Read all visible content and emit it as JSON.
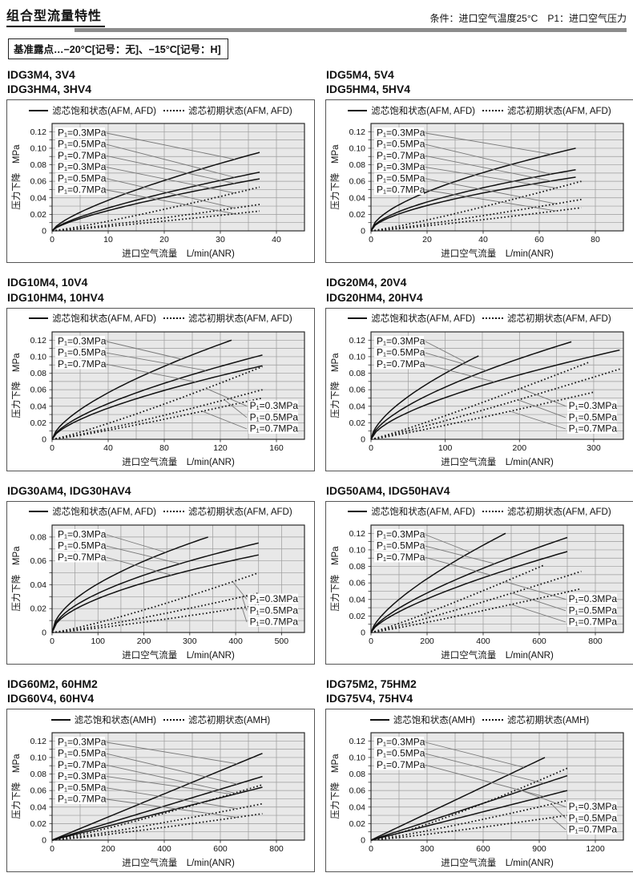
{
  "page": {
    "title": "组合型流量特性",
    "condition": "条件：进口空气温度25°C　P1：进口空气压力",
    "dew_point_note": "基准露点…−20°C[记号：无]、−15°C[记号：H]"
  },
  "colors": {
    "plot_bg": "#e8e8e8",
    "grid": "#9b9b9b",
    "curve": "#111111",
    "leader": "#777777",
    "divider": "#8c8c8c"
  },
  "chart_data": [
    {
      "type": "line",
      "title_lines": [
        "IDG3M4, 3V4",
        "IDG3HM4, 3HV4"
      ],
      "legend": {
        "solid": "滤芯饱和状态(AFM, AFD)",
        "dotted": "滤芯初期状态(AFM, AFD)"
      },
      "xlabel": "进口空气流量　L/min(ANR)",
      "ylabel": "压力下降　MPa",
      "xlim": [
        0,
        45
      ],
      "xticks": [
        [
          0,
          "0"
        ],
        [
          10,
          "10"
        ],
        [
          20,
          "20"
        ],
        [
          30,
          "30"
        ],
        [
          40,
          "40"
        ]
      ],
      "x_minor": 5,
      "ylim": [
        0,
        0.13
      ],
      "yticks": [
        [
          0,
          "0"
        ],
        [
          0.02,
          "0.02"
        ],
        [
          0.04,
          "0.04"
        ],
        [
          0.06,
          "0.06"
        ],
        [
          0.08,
          "0.08"
        ],
        [
          0.1,
          "0.10"
        ],
        [
          0.12,
          "0.12"
        ]
      ],
      "y_minor": 0.01,
      "series": [
        {
          "p1": "0.3MPa",
          "state": "saturated",
          "style": "solid",
          "p": 0.72,
          "end": [
            37,
            0.095
          ]
        },
        {
          "p1": "0.5MPa",
          "state": "saturated",
          "style": "solid",
          "p": 0.72,
          "end": [
            37,
            0.071
          ]
        },
        {
          "p1": "0.7MPa",
          "state": "saturated",
          "style": "solid",
          "p": 0.72,
          "end": [
            37,
            0.063
          ]
        },
        {
          "p1": "0.3MPa",
          "state": "initial",
          "style": "dotted",
          "p": 1.15,
          "end": [
            37,
            0.053
          ]
        },
        {
          "p1": "0.5MPa",
          "state": "initial",
          "style": "dotted",
          "p": 1.15,
          "end": [
            37,
            0.032
          ]
        },
        {
          "p1": "0.7MPa",
          "state": "initial",
          "style": "dotted",
          "p": 1.15,
          "end": [
            37,
            0.024
          ]
        }
      ],
      "labels_left": [
        "P₁=0.3MPa",
        "P₁=0.5MPa",
        "P₁=0.7MPa",
        "P₁=0.3MPa",
        "P₁=0.5MPa",
        "P₁=0.7MPa"
      ],
      "labels_right": []
    },
    {
      "type": "line",
      "title_lines": [
        "IDG5M4, 5V4",
        "IDG5HM4, 5HV4"
      ],
      "legend": {
        "solid": "滤芯饱和状态(AFM, AFD)",
        "dotted": "滤芯初期状态(AFM, AFD)"
      },
      "xlabel": "进口空气流量　L/min(ANR)",
      "ylabel": "压力下降　MPa",
      "xlim": [
        0,
        90
      ],
      "xticks": [
        [
          0,
          "0"
        ],
        [
          20,
          "20"
        ],
        [
          40,
          "40"
        ],
        [
          60,
          "60"
        ],
        [
          80,
          "80"
        ]
      ],
      "x_minor": 10,
      "ylim": [
        0,
        0.13
      ],
      "yticks": [
        [
          0,
          "0"
        ],
        [
          0.02,
          "0.02"
        ],
        [
          0.04,
          "0.04"
        ],
        [
          0.06,
          "0.06"
        ],
        [
          0.08,
          "0.08"
        ],
        [
          0.1,
          "0.10"
        ],
        [
          0.12,
          "0.12"
        ]
      ],
      "y_minor": 0.01,
      "series": [
        {
          "p1": "0.3MPa",
          "state": "saturated",
          "style": "solid",
          "p": 0.58,
          "end": [
            73,
            0.1
          ]
        },
        {
          "p1": "0.5MPa",
          "state": "saturated",
          "style": "solid",
          "p": 0.58,
          "end": [
            73,
            0.074
          ]
        },
        {
          "p1": "0.7MPa",
          "state": "saturated",
          "style": "solid",
          "p": 0.58,
          "end": [
            73,
            0.065
          ]
        },
        {
          "p1": "0.3MPa",
          "state": "initial",
          "style": "dotted",
          "p": 1.15,
          "end": [
            75,
            0.06
          ]
        },
        {
          "p1": "0.5MPa",
          "state": "initial",
          "style": "dotted",
          "p": 1.15,
          "end": [
            75,
            0.038
          ]
        },
        {
          "p1": "0.7MPa",
          "state": "initial",
          "style": "dotted",
          "p": 1.15,
          "end": [
            75,
            0.028
          ]
        }
      ],
      "labels_left": [
        "P₁=0.3MPa",
        "P₁=0.5MPa",
        "P₁=0.7MPa",
        "P₁=0.3MPa",
        "P₁=0.5MPa",
        "P₁=0.7MPa"
      ],
      "labels_right": []
    },
    {
      "type": "line",
      "title_lines": [
        "IDG10M4, 10V4",
        "IDG10HM4, 10HV4"
      ],
      "legend": {
        "solid": "滤芯饱和状态(AFM, AFD)",
        "dotted": "滤芯初期状态(AFM, AFD)"
      },
      "xlabel": "进口空气流量　L/min(ANR)",
      "ylabel": "压力下降　MPa",
      "xlim": [
        0,
        180
      ],
      "xticks": [
        [
          0,
          "0"
        ],
        [
          40,
          "40"
        ],
        [
          80,
          "80"
        ],
        [
          120,
          "120"
        ],
        [
          160,
          "160"
        ]
      ],
      "x_minor": 20,
      "ylim": [
        0,
        0.13
      ],
      "yticks": [
        [
          0,
          "0"
        ],
        [
          0.02,
          "0.02"
        ],
        [
          0.04,
          "0.04"
        ],
        [
          0.06,
          "0.06"
        ],
        [
          0.08,
          "0.08"
        ],
        [
          0.1,
          "0.10"
        ],
        [
          0.12,
          "0.12"
        ]
      ],
      "y_minor": 0.01,
      "series": [
        {
          "p1": "0.3MPa",
          "state": "saturated",
          "style": "solid",
          "p": 0.65,
          "end": [
            128,
            0.12
          ]
        },
        {
          "p1": "0.5MPa",
          "state": "saturated",
          "style": "solid",
          "p": 0.65,
          "end": [
            150,
            0.102
          ]
        },
        {
          "p1": "0.7MPa",
          "state": "saturated",
          "style": "solid",
          "p": 0.65,
          "end": [
            150,
            0.089
          ]
        },
        {
          "p1": "0.3MPa",
          "state": "initial",
          "style": "dotted",
          "p": 1.15,
          "end": [
            150,
            0.088
          ]
        },
        {
          "p1": "0.5MPa",
          "state": "initial",
          "style": "dotted",
          "p": 1.15,
          "end": [
            150,
            0.06
          ]
        },
        {
          "p1": "0.7MPa",
          "state": "initial",
          "style": "dotted",
          "p": 1.15,
          "end": [
            150,
            0.05
          ]
        }
      ],
      "labels_left": [
        "P₁=0.3MPa",
        "P₁=0.5MPa",
        "P₁=0.7MPa"
      ],
      "labels_right": [
        "P₁=0.3MPa",
        "P₁=0.5MPa",
        "P₁=0.7MPa"
      ]
    },
    {
      "type": "line",
      "title_lines": [
        "IDG20M4, 20V4",
        "IDG20HM4, 20HV4"
      ],
      "legend": {
        "solid": "滤芯饱和状态(AFM, AFD)",
        "dotted": "滤芯初期状态(AFM, AFD)"
      },
      "xlabel": "进口空气流量　L/min(ANR)",
      "ylabel": "压力下降　MPa",
      "xlim": [
        0,
        340
      ],
      "xticks": [
        [
          0,
          "0"
        ],
        [
          100,
          "100"
        ],
        [
          200,
          "200"
        ],
        [
          300,
          "300"
        ]
      ],
      "x_minor": 50,
      "ylim": [
        0,
        0.13
      ],
      "yticks": [
        [
          0,
          "0"
        ],
        [
          0.02,
          "0.02"
        ],
        [
          0.04,
          "0.04"
        ],
        [
          0.06,
          "0.06"
        ],
        [
          0.08,
          "0.08"
        ],
        [
          0.1,
          "0.10"
        ],
        [
          0.12,
          "0.12"
        ]
      ],
      "y_minor": 0.01,
      "series": [
        {
          "p1": "0.3MPa",
          "state": "saturated",
          "style": "solid",
          "p": 0.63,
          "end": [
            145,
            0.101
          ]
        },
        {
          "p1": "0.5MPa",
          "state": "saturated",
          "style": "solid",
          "p": 0.63,
          "end": [
            270,
            0.118
          ]
        },
        {
          "p1": "0.7MPa",
          "state": "saturated",
          "style": "solid",
          "p": 0.63,
          "end": [
            335,
            0.108
          ]
        },
        {
          "p1": "0.3MPa",
          "state": "initial",
          "style": "dotted",
          "p": 1.1,
          "end": [
            293,
            0.093
          ]
        },
        {
          "p1": "0.5MPa",
          "state": "initial",
          "style": "dotted",
          "p": 1.1,
          "end": [
            335,
            0.085
          ]
        },
        {
          "p1": "0.7MPa",
          "state": "initial",
          "style": "dotted",
          "p": 1.1,
          "end": [
            300,
            0.057
          ]
        }
      ],
      "labels_left": [
        "P₁=0.3MPa",
        "P₁=0.5MPa",
        "P₁=0.7MPa"
      ],
      "labels_right": [
        "P₁=0.3MPa",
        "P₁=0.5MPa",
        "P₁=0.7MPa"
      ]
    },
    {
      "type": "line",
      "title_lines": [
        "IDG30AM4, IDG30HAV4"
      ],
      "legend": {
        "solid": "滤芯饱和状态(AFM, AFD)",
        "dotted": "滤芯初期状态(AFM, AFD)"
      },
      "xlabel": "进口空气流量　L/min(ANR)",
      "ylabel": "压力下降　MPa",
      "xlim": [
        0,
        550
      ],
      "xticks": [
        [
          0,
          "0"
        ],
        [
          100,
          "100"
        ],
        [
          200,
          "200"
        ],
        [
          300,
          "300"
        ],
        [
          400,
          "400"
        ],
        [
          500,
          "500"
        ]
      ],
      "x_minor": 50,
      "ylim": [
        0,
        0.09
      ],
      "yticks": [
        [
          0,
          "0"
        ],
        [
          0.02,
          "0.02"
        ],
        [
          0.04,
          "0.04"
        ],
        [
          0.06,
          "0.06"
        ],
        [
          0.08,
          "0.08"
        ]
      ],
      "y_minor": 0.01,
      "series": [
        {
          "p1": "0.3MPa",
          "state": "saturated",
          "style": "solid",
          "p": 0.55,
          "end": [
            340,
            0.08
          ]
        },
        {
          "p1": "0.5MPa",
          "state": "saturated",
          "style": "solid",
          "p": 0.55,
          "end": [
            450,
            0.075
          ]
        },
        {
          "p1": "0.7MPa",
          "state": "saturated",
          "style": "solid",
          "p": 0.55,
          "end": [
            450,
            0.065
          ]
        },
        {
          "p1": "0.3MPa",
          "state": "initial",
          "style": "dotted",
          "p": 1.2,
          "end": [
            450,
            0.05
          ]
        },
        {
          "p1": "0.5MPa",
          "state": "initial",
          "style": "dotted",
          "p": 1.2,
          "end": [
            450,
            0.033
          ]
        },
        {
          "p1": "0.7MPa",
          "state": "initial",
          "style": "dotted",
          "p": 1.2,
          "end": [
            450,
            0.023
          ]
        }
      ],
      "labels_left": [
        "P₁=0.3MPa",
        "P₁=0.5MPa",
        "P₁=0.7MPa"
      ],
      "labels_right": [
        "P₁=0.3MPa",
        "P₁=0.5MPa",
        "P₁=0.7MPa"
      ]
    },
    {
      "type": "line",
      "title_lines": [
        "IDG50AM4, IDG50HAV4"
      ],
      "legend": {
        "solid": "滤芯饱和状态(AFM, AFD)",
        "dotted": "滤芯初期状态(AFM, AFD)"
      },
      "xlabel": "进口空气流量　L/min(ANR)",
      "ylabel": "压力下降　MPa",
      "xlim": [
        0,
        900
      ],
      "xticks": [
        [
          0,
          "0"
        ],
        [
          200,
          "200"
        ],
        [
          400,
          "400"
        ],
        [
          600,
          "600"
        ],
        [
          800,
          "800"
        ]
      ],
      "x_minor": 100,
      "ylim": [
        0,
        0.13
      ],
      "yticks": [
        [
          0,
          "0"
        ],
        [
          0.02,
          "0.02"
        ],
        [
          0.04,
          "0.04"
        ],
        [
          0.06,
          "0.06"
        ],
        [
          0.08,
          "0.08"
        ],
        [
          0.1,
          "0.10"
        ],
        [
          0.12,
          "0.12"
        ]
      ],
      "y_minor": 0.01,
      "series": [
        {
          "p1": "0.3MPa",
          "state": "saturated",
          "style": "solid",
          "p": 0.7,
          "end": [
            480,
            0.12
          ]
        },
        {
          "p1": "0.5MPa",
          "state": "saturated",
          "style": "solid",
          "p": 0.7,
          "end": [
            700,
            0.115
          ]
        },
        {
          "p1": "0.7MPa",
          "state": "saturated",
          "style": "solid",
          "p": 0.7,
          "end": [
            700,
            0.098
          ]
        },
        {
          "p1": "0.3MPa",
          "state": "initial",
          "style": "dotted",
          "p": 1.1,
          "end": [
            620,
            0.082
          ]
        },
        {
          "p1": "0.5MPa",
          "state": "initial",
          "style": "dotted",
          "p": 1.1,
          "end": [
            750,
            0.074
          ]
        },
        {
          "p1": "0.7MPa",
          "state": "initial",
          "style": "dotted",
          "p": 1.1,
          "end": [
            750,
            0.053
          ]
        }
      ],
      "labels_left": [
        "P₁=0.3MPa",
        "P₁=0.5MPa",
        "P₁=0.7MPa"
      ],
      "labels_right": [
        "P₁=0.3MPa",
        "P₁=0.5MPa",
        "P₁=0.7MPa"
      ]
    },
    {
      "type": "line",
      "title_lines": [
        "IDG60M2, 60HM2",
        "IDG60V4, 60HV4"
      ],
      "legend": {
        "solid": "滤芯饱和状态(AMH)",
        "dotted": "滤芯初期状态(AMH)"
      },
      "xlabel": "进口空气流量　L/min(ANR)",
      "ylabel": "压力下降　MPa",
      "xlim": [
        0,
        900
      ],
      "xticks": [
        [
          0,
          "0"
        ],
        [
          200,
          "200"
        ],
        [
          400,
          "400"
        ],
        [
          600,
          "600"
        ],
        [
          800,
          "800"
        ]
      ],
      "x_minor": 100,
      "ylim": [
        0,
        0.13
      ],
      "yticks": [
        [
          0,
          "0"
        ],
        [
          0.02,
          "0.02"
        ],
        [
          0.04,
          "0.04"
        ],
        [
          0.06,
          "0.06"
        ],
        [
          0.08,
          "0.08"
        ],
        [
          0.1,
          "0.10"
        ],
        [
          0.12,
          "0.12"
        ]
      ],
      "y_minor": 0.01,
      "series": [
        {
          "p1": "0.3MPa",
          "state": "saturated",
          "style": "solid",
          "p": 1.0,
          "end": [
            750,
            0.105
          ]
        },
        {
          "p1": "0.5MPa",
          "state": "saturated",
          "style": "solid",
          "p": 1.0,
          "end": [
            750,
            0.077
          ]
        },
        {
          "p1": "0.7MPa",
          "state": "saturated",
          "style": "solid",
          "p": 1.0,
          "end": [
            750,
            0.064
          ]
        },
        {
          "p1": "0.3MPa",
          "state": "initial",
          "style": "dotted",
          "p": 1.15,
          "end": [
            750,
            0.067
          ]
        },
        {
          "p1": "0.5MPa",
          "state": "initial",
          "style": "dotted",
          "p": 1.15,
          "end": [
            750,
            0.044
          ]
        },
        {
          "p1": "0.7MPa",
          "state": "initial",
          "style": "dotted",
          "p": 1.15,
          "end": [
            750,
            0.032
          ]
        }
      ],
      "labels_left": [
        "P₁=0.3MPa",
        "P₁=0.5MPa",
        "P₁=0.7MPa",
        "P₁=0.3MPa",
        "P₁=0.5MPa",
        "P₁=0.7MPa"
      ],
      "labels_right": []
    },
    {
      "type": "line",
      "title_lines": [
        "IDG75M2, 75HM2",
        "IDG75V4, 75HV4"
      ],
      "legend": {
        "solid": "滤芯饱和状态(AMH)",
        "dotted": "滤芯初期状态(AMH)"
      },
      "xlabel": "进口空气流量　L/min(ANR)",
      "ylabel": "压力下降　MPa",
      "xlim": [
        0,
        1350
      ],
      "xticks": [
        [
          0,
          "0"
        ],
        [
          300,
          "300"
        ],
        [
          600,
          "600"
        ],
        [
          900,
          "900"
        ],
        [
          1200,
          "1200"
        ]
      ],
      "x_minor": 150,
      "ylim": [
        0,
        0.13
      ],
      "yticks": [
        [
          0,
          "0"
        ],
        [
          0.02,
          "0.02"
        ],
        [
          0.04,
          "0.04"
        ],
        [
          0.06,
          "0.06"
        ],
        [
          0.08,
          "0.08"
        ],
        [
          0.1,
          "0.10"
        ],
        [
          0.12,
          "0.12"
        ]
      ],
      "y_minor": 0.01,
      "series": [
        {
          "p1": "0.3MPa",
          "state": "saturated",
          "style": "solid",
          "p": 1.0,
          "end": [
            930,
            0.1
          ]
        },
        {
          "p1": "0.5MPa",
          "state": "saturated",
          "style": "solid",
          "p": 1.0,
          "end": [
            1050,
            0.078
          ]
        },
        {
          "p1": "0.7MPa",
          "state": "saturated",
          "style": "solid",
          "p": 1.0,
          "end": [
            1050,
            0.06
          ]
        },
        {
          "p1": "0.3MPa",
          "state": "initial",
          "style": "dotted",
          "p": 1.2,
          "end": [
            1050,
            0.087
          ]
        },
        {
          "p1": "0.5MPa",
          "state": "initial",
          "style": "dotted",
          "p": 1.15,
          "end": [
            1050,
            0.048
          ]
        },
        {
          "p1": "0.7MPa",
          "state": "initial",
          "style": "dotted",
          "p": 1.15,
          "end": [
            1050,
            0.03
          ]
        }
      ],
      "labels_left": [
        "P₁=0.3MPa",
        "P₁=0.5MPa",
        "P₁=0.7MPa"
      ],
      "labels_right": [
        "P₁=0.3MPa",
        "P₁=0.5MPa",
        "P₁=0.7MPa"
      ]
    }
  ]
}
